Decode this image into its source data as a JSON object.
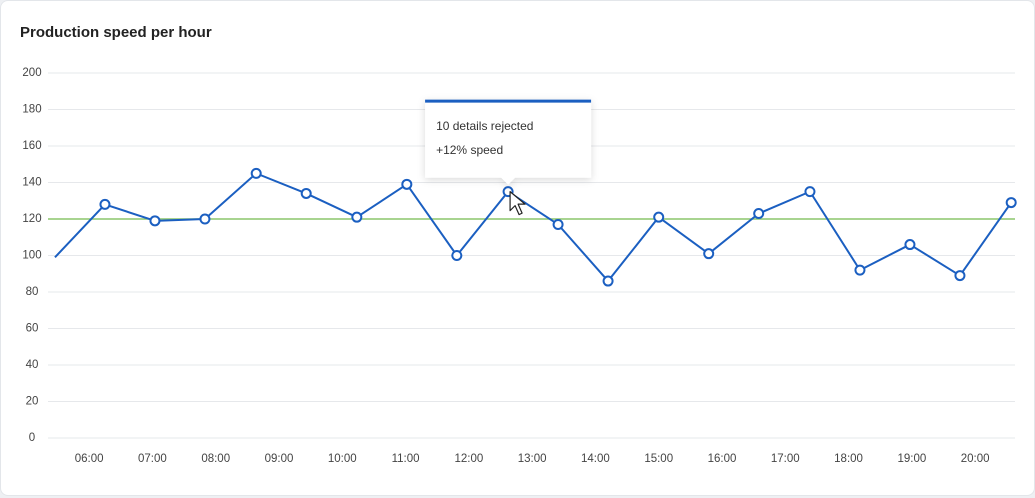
{
  "chart_data": {
    "type": "line",
    "title": "Production speed per hour",
    "x": [
      5.46,
      6.25,
      7.04,
      7.83,
      8.64,
      9.43,
      10.23,
      11.02,
      11.81,
      12.62,
      13.41,
      14.2,
      15.0,
      15.79,
      16.58,
      17.39,
      18.18,
      18.97,
      19.76,
      20.57
    ],
    "series": [
      {
        "color": "#1b5fc1",
        "values": [
          99,
          128,
          119,
          120,
          145,
          134,
          121,
          139,
          100,
          135,
          117,
          86,
          121,
          101,
          123,
          135,
          92,
          106,
          89,
          129
        ]
      }
    ],
    "threshold": 120,
    "threshold_color": "#8cc56b",
    "xlim": [
      5.35,
      20.63
    ],
    "xticks": [
      {
        "value": 6,
        "label": "06:00"
      },
      {
        "value": 7,
        "label": "07:00"
      },
      {
        "value": 8,
        "label": "08:00"
      },
      {
        "value": 9,
        "label": "09:00"
      },
      {
        "value": 10,
        "label": "10:00"
      },
      {
        "value": 11,
        "label": "11:00"
      },
      {
        "value": 12,
        "label": "12:00"
      },
      {
        "value": 13,
        "label": "13:00"
      },
      {
        "value": 14,
        "label": "14:00"
      },
      {
        "value": 15,
        "label": "15:00"
      },
      {
        "value": 16,
        "label": "16:00"
      },
      {
        "value": 17,
        "label": "17:00"
      },
      {
        "value": 18,
        "label": "18:00"
      },
      {
        "value": 19,
        "label": "19:00"
      },
      {
        "value": 20,
        "label": "20:00"
      }
    ],
    "ylim": [
      0,
      200
    ],
    "yticks": [
      0,
      20,
      40,
      60,
      80,
      100,
      120,
      140,
      160,
      180,
      200
    ],
    "grid": true,
    "annotation": {
      "title": "10 details rejected",
      "subtitle": "+12% speed",
      "point": 9
    }
  }
}
